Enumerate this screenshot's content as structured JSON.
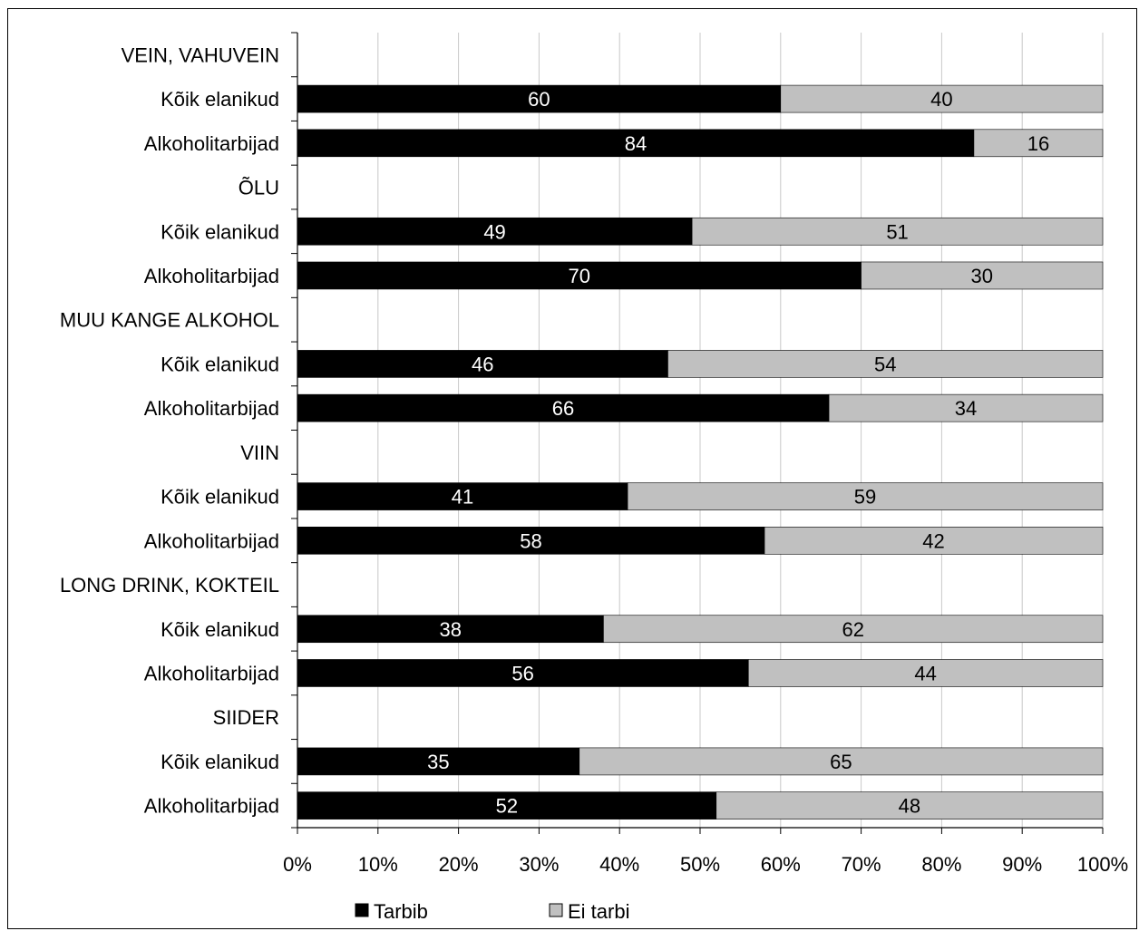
{
  "chart_data": {
    "type": "bar",
    "orientation": "horizontal",
    "stacked": "percent",
    "title": "",
    "xlabel": "",
    "ylabel": "",
    "xlim": [
      0,
      100
    ],
    "x_ticks": [
      "0%",
      "10%",
      "20%",
      "30%",
      "40%",
      "50%",
      "60%",
      "70%",
      "80%",
      "90%",
      "100%"
    ],
    "grid": "vertical",
    "legend_position": "bottom",
    "categories": [
      "VEIN, VAHUVEIN",
      "Kõik elanikud",
      "Alkoholitarbijad",
      "ÕLU",
      "Kõik elanikud",
      "Alkoholitarbijad",
      "MUU KANGE ALKOHOL",
      "Kõik elanikud",
      "Alkoholitarbijad",
      "VIIN",
      "Kõik elanikud",
      "Alkoholitarbijad",
      "LONG DRINK, KOKTEIL",
      "Kõik elanikud",
      "Alkoholitarbijad",
      "SIIDER",
      "Kõik elanikud",
      "Alkoholitarbijad"
    ],
    "series": [
      {
        "name": "Tarbib",
        "color": "#000000",
        "label_color": "#ffffff",
        "values": [
          null,
          60,
          84,
          null,
          49,
          70,
          null,
          46,
          66,
          null,
          41,
          58,
          null,
          38,
          56,
          null,
          35,
          52
        ]
      },
      {
        "name": "Ei tarbi",
        "color": "#c0c0c0",
        "label_color": "#000000",
        "values": [
          null,
          40,
          16,
          null,
          51,
          30,
          null,
          54,
          34,
          null,
          59,
          42,
          null,
          62,
          44,
          null,
          65,
          48
        ]
      }
    ]
  }
}
